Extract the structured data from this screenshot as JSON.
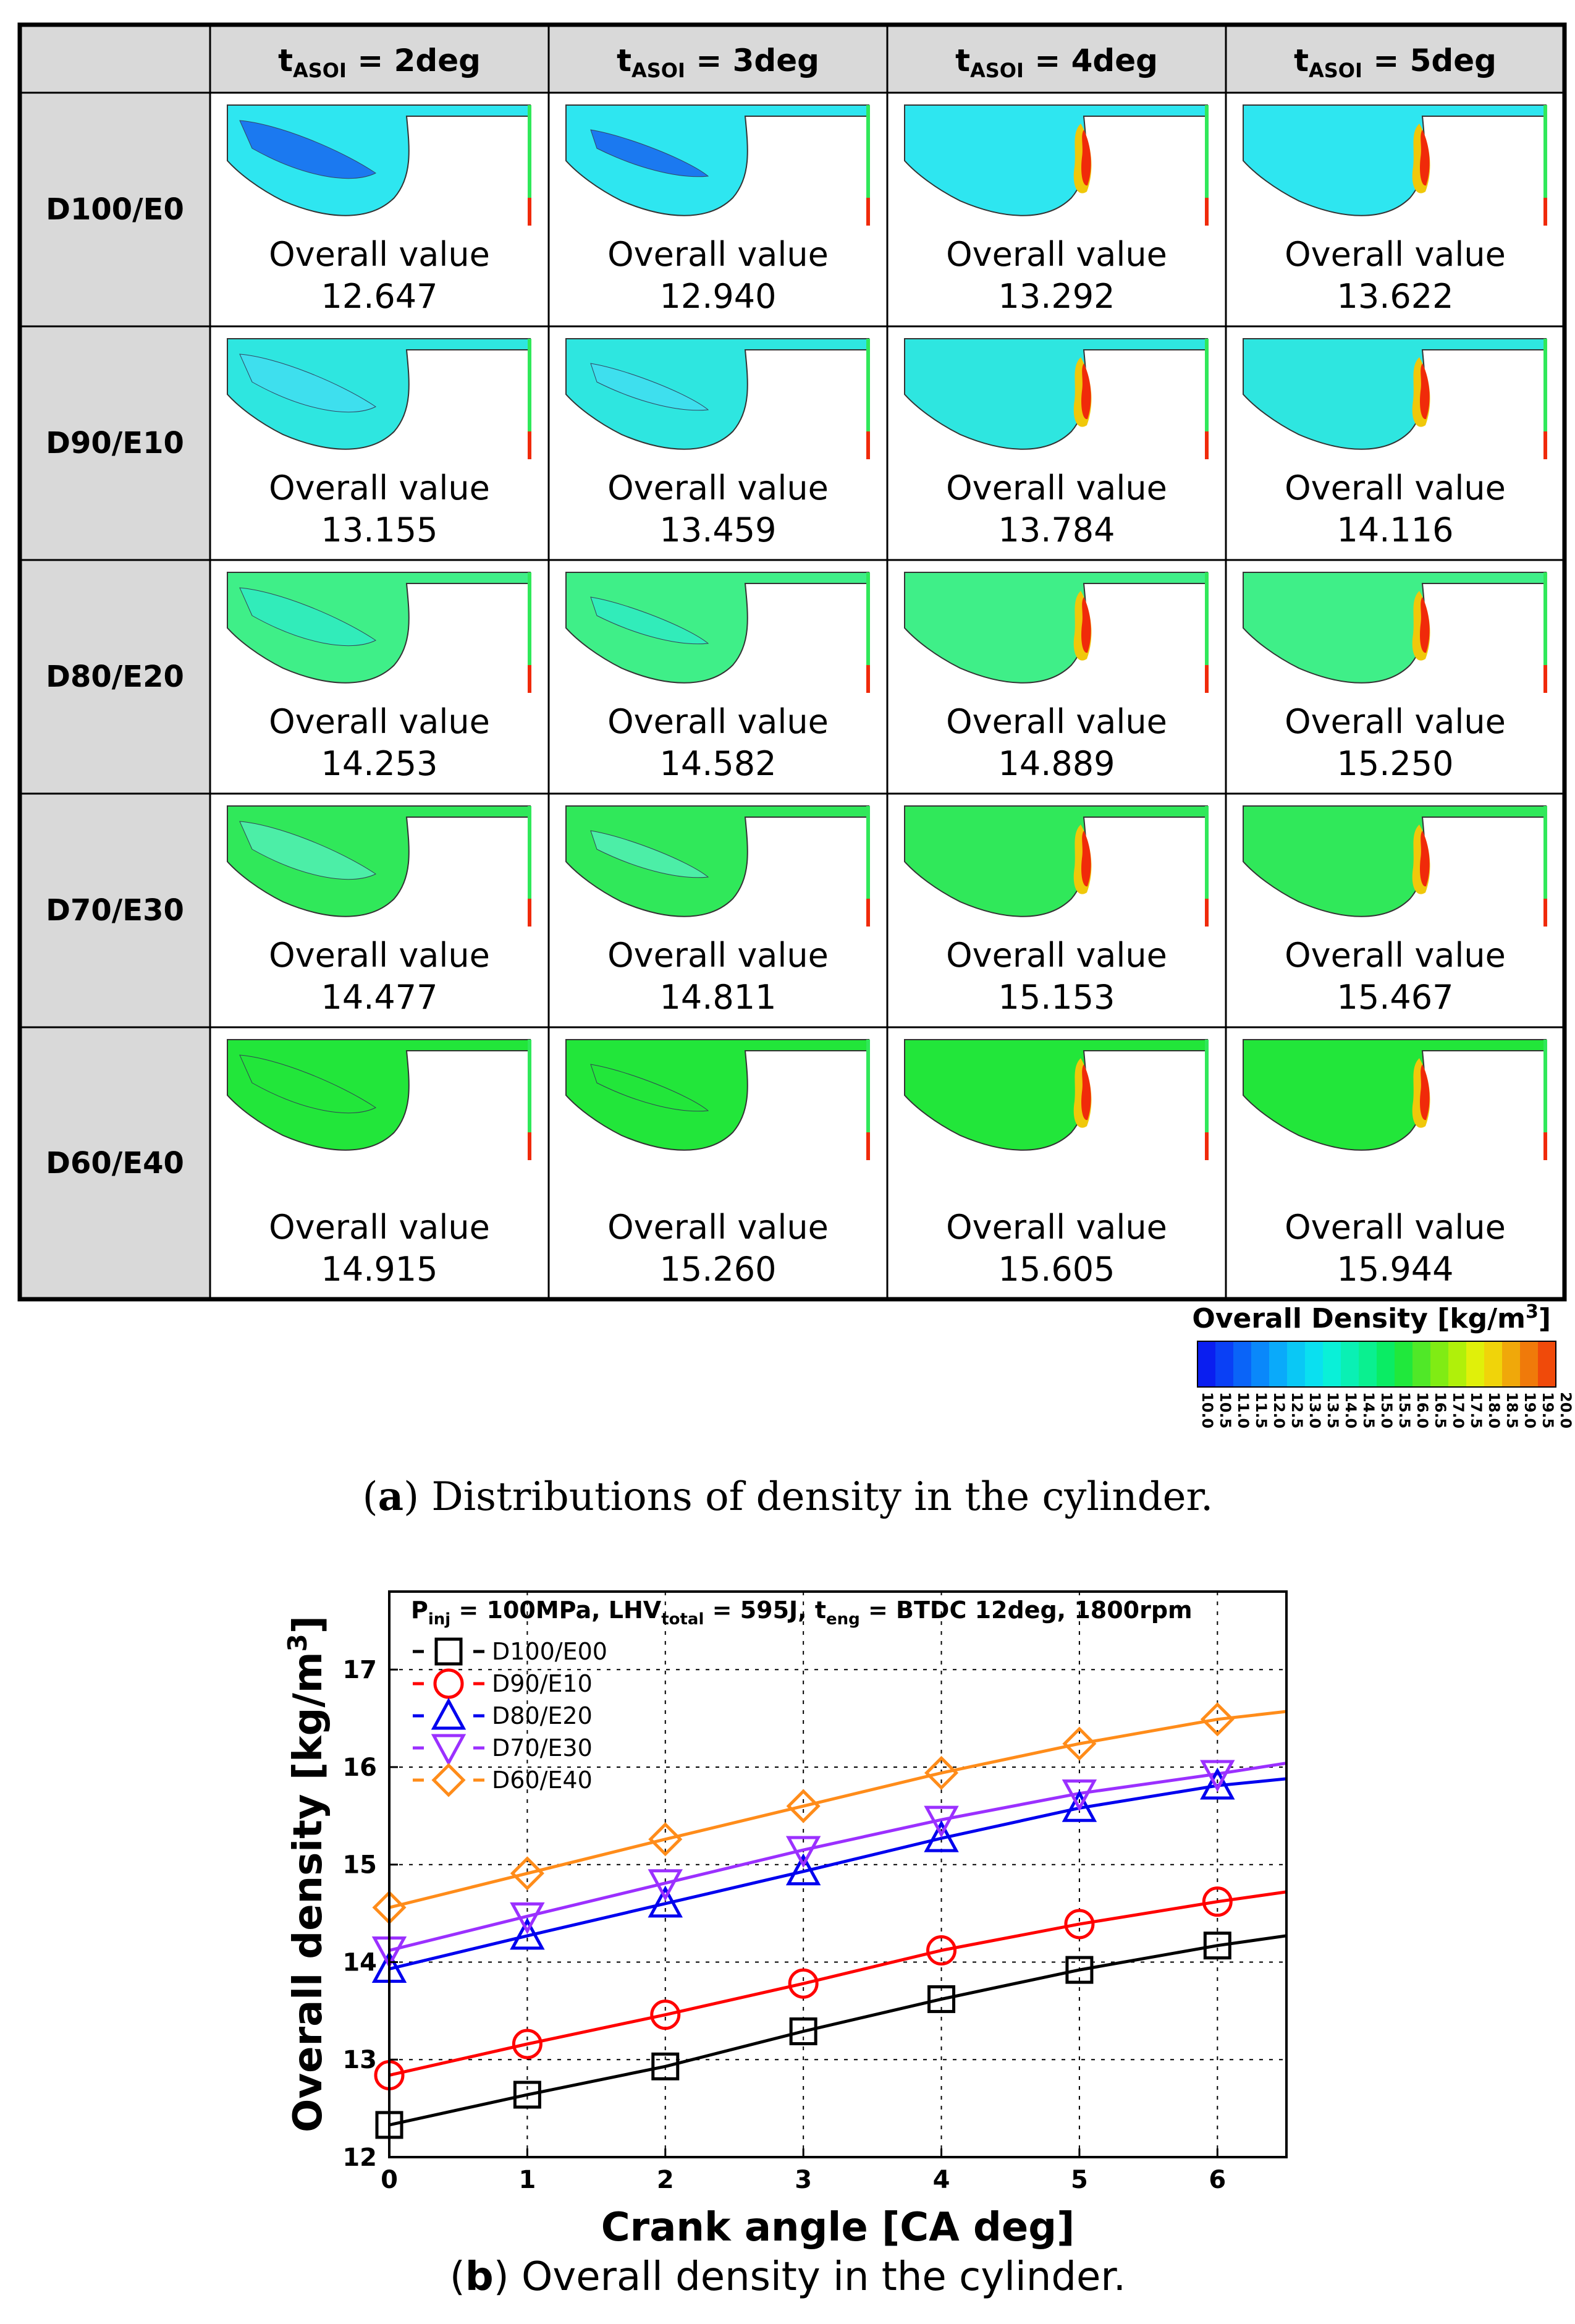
{
  "table": {
    "corner": "",
    "col_headers": [
      {
        "base": "t",
        "sub": "ASOI",
        "rest": " = 2deg"
      },
      {
        "base": "t",
        "sub": "ASOI",
        "rest": " = 3deg"
      },
      {
        "base": "t",
        "sub": "ASOI",
        "rest": " = 4deg"
      },
      {
        "base": "t",
        "sub": "ASOI",
        "rest": " = 5deg"
      }
    ],
    "overall_label": "Overall value",
    "rows": [
      {
        "label": "D100/E0",
        "values": [
          "12.647",
          "12.940",
          "13.292",
          "13.622"
        ]
      },
      {
        "label": "D90/E10",
        "values": [
          "13.155",
          "13.459",
          "13.784",
          "14.116"
        ]
      },
      {
        "label": "D80/E20",
        "values": [
          "14.253",
          "14.582",
          "14.889",
          "15.250"
        ]
      },
      {
        "label": "D70/E30",
        "values": [
          "14.477",
          "14.811",
          "15.153",
          "15.467"
        ]
      },
      {
        "label": "D60/E40",
        "values": [
          "14.915",
          "15.260",
          "15.605",
          "15.944"
        ]
      }
    ]
  },
  "colorbar": {
    "title_main": "Overall Density [kg/m",
    "title_sup": "3",
    "title_end": "]",
    "ticks": [
      "10.0",
      "10.5",
      "11.0",
      "11.5",
      "12.0",
      "12.5",
      "13.0",
      "13.5",
      "14.0",
      "14.5",
      "15.0",
      "15.5",
      "16.0",
      "16.5",
      "17.0",
      "17.5",
      "18.0",
      "18.5",
      "19.0",
      "19.5",
      "20.0"
    ],
    "colors": [
      "#0a1ef0",
      "#0a40f5",
      "#0a64f8",
      "#0a88fa",
      "#0aaafa",
      "#0ac8f5",
      "#0ae0f0",
      "#0af0d8",
      "#0af0b4",
      "#0af090",
      "#0aec64",
      "#20e83c",
      "#50e828",
      "#80ec14",
      "#b0f00a",
      "#e0f00a",
      "#f0d40a",
      "#f0a80a",
      "#f07a0a",
      "#f04a0a"
    ]
  },
  "captions": {
    "a_letter": "a",
    "a_text": " Distributions of density in the cylinder.",
    "b_letter": "b",
    "b_text": " Overall density in the cylinder."
  },
  "chart_data": {
    "type": "line",
    "title": {
      "p1": "P",
      "p1_sub": "inj",
      "p2": " = 100MPa, LHV",
      "p2_sub": "total",
      "p3": " = 595J, t",
      "p3_sub": "eng",
      "p4": " = BTDC 12deg, 1800rpm"
    },
    "xlabel": "Crank angle [CA deg]",
    "ylabel": "Overall density [kg/m",
    "ylabel_sup": "3",
    "ylabel_end": "]",
    "xlim": [
      0,
      6.5
    ],
    "ylim": [
      12,
      17.8
    ],
    "xticks": [
      0,
      1,
      2,
      3,
      4,
      5,
      6
    ],
    "yticks": [
      12,
      13,
      14,
      15,
      16,
      17
    ],
    "grid": true,
    "legend_position": "top-left",
    "series": [
      {
        "name": "D100/E00",
        "color": "#000000",
        "marker": "square",
        "x": [
          0,
          1,
          2,
          3,
          4,
          5,
          6,
          6.5
        ],
        "values": [
          12.33,
          12.64,
          12.93,
          13.29,
          13.62,
          13.92,
          14.17,
          14.27
        ],
        "marker_count": 7
      },
      {
        "name": "D90/E10",
        "color": "#ff0000",
        "marker": "circle",
        "x": [
          0,
          1,
          2,
          3,
          4,
          5,
          6,
          6.5
        ],
        "values": [
          12.84,
          13.16,
          13.46,
          13.78,
          14.12,
          14.39,
          14.62,
          14.72
        ],
        "marker_count": 7
      },
      {
        "name": "D80/E20",
        "color": "#0000ee",
        "marker": "triangle-up",
        "x": [
          0,
          1,
          2,
          3,
          4,
          5,
          6,
          6.5
        ],
        "values": [
          13.93,
          14.27,
          14.6,
          14.93,
          15.27,
          15.58,
          15.81,
          15.88
        ],
        "marker_count": 7
      },
      {
        "name": "D70/E30",
        "color": "#9b30ff",
        "marker": "triangle-down",
        "x": [
          0,
          1,
          2,
          3,
          4,
          5,
          6,
          6.5
        ],
        "values": [
          14.12,
          14.47,
          14.81,
          15.15,
          15.46,
          15.73,
          15.93,
          16.04
        ],
        "marker_count": 7
      },
      {
        "name": "D60/E40",
        "color": "#ff8c1a",
        "marker": "diamond",
        "x": [
          0,
          1,
          2,
          3,
          4,
          5,
          6,
          6.5
        ],
        "values": [
          14.56,
          14.91,
          15.26,
          15.6,
          15.94,
          16.24,
          16.49,
          16.57
        ],
        "marker_count": 7
      }
    ]
  }
}
